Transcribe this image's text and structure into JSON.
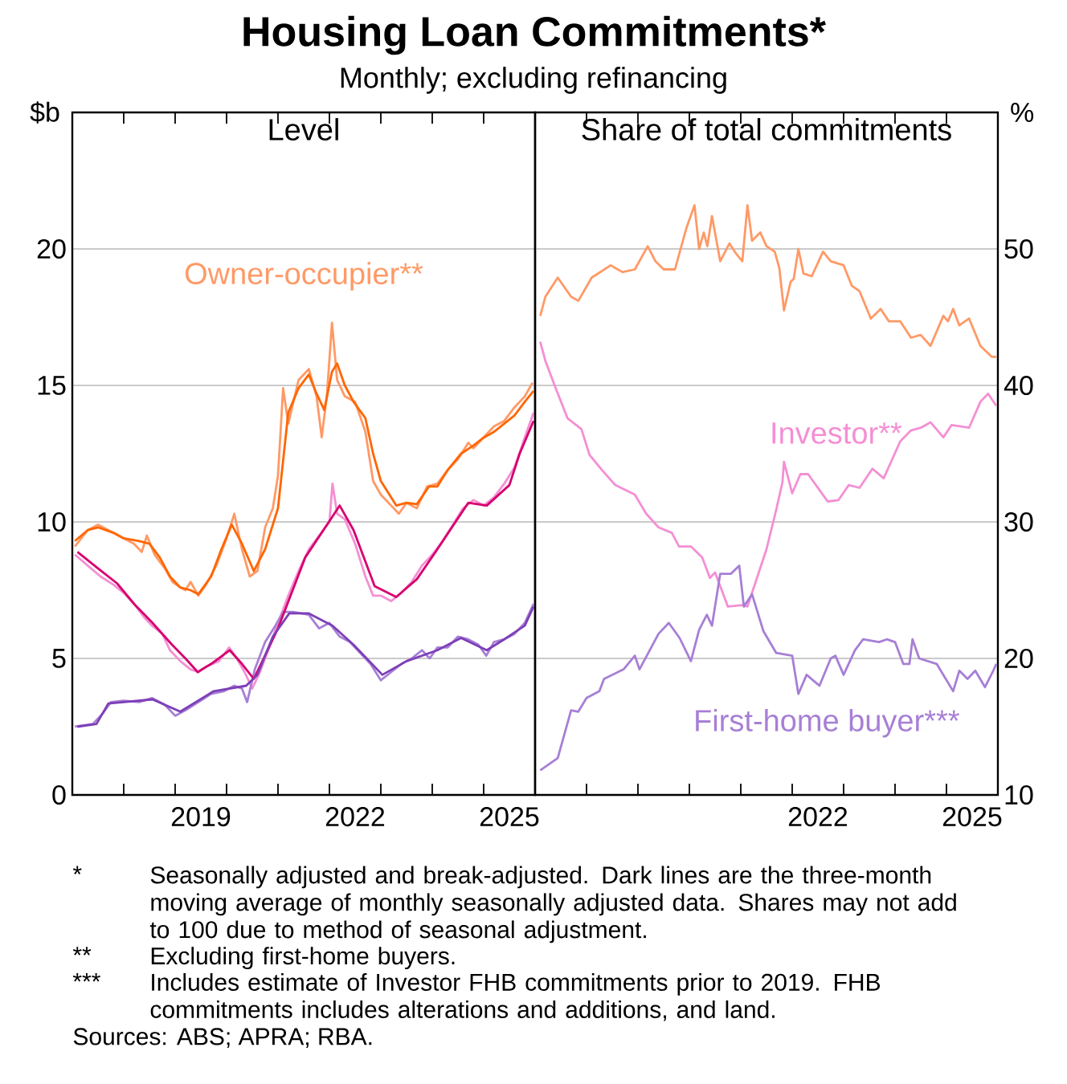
{
  "chart_data": [
    {
      "type": "line",
      "title": "Level",
      "ylabel": "$b",
      "annotations": [
        "Housing Loan Commitments*",
        "Monthly; excluding refinancing",
        "*",
        "Seasonally adjusted and break-adjusted. Dark lines are the three-month moving average of monthly seasonally adjusted data. Shares may not add to 100 due to method of seasonal adjustment.",
        "**",
        "Excluding first-home buyers.",
        "***",
        "Includes estimate of Investor FHB commitments prior to 2019. FHB commitments includes alterations and additions, and land.",
        "Sources: ABS; APRA; RBA."
      ],
      "xlim": [
        2017,
        2026
      ],
      "xticks": [
        {
          "value": 2018,
          "label": null
        },
        {
          "value": 2019,
          "label": null
        },
        {
          "value": 2020,
          "label": null
        },
        {
          "value": 2021,
          "label": null
        },
        {
          "value": 2022,
          "label": null
        },
        {
          "value": 2023,
          "label": null
        },
        {
          "value": 2024,
          "label": null
        },
        {
          "value": 2025,
          "label": null
        },
        {
          "value": 2019.5,
          "label": "2019"
        },
        {
          "value": 2022.5,
          "label": "2022"
        },
        {
          "value": 2025.5,
          "label": "2025"
        }
      ],
      "ylim": [
        0,
        25
      ],
      "yticks": [
        0,
        5,
        10,
        15,
        20
      ],
      "grid": "y",
      "series": [
        {
          "name": "Owner-occupier**",
          "color": "#ff9966",
          "x": [
            2017.05,
            2017.3,
            2017.5,
            2017.8,
            2018.0,
            2018.2,
            2018.35,
            2018.45,
            2018.6,
            2018.8,
            2018.95,
            2019.1,
            2019.2,
            2019.3,
            2019.45,
            2019.6,
            2019.8,
            2020.0,
            2020.15,
            2020.3,
            2020.45,
            2020.6,
            2020.75,
            2020.9,
            2021.0,
            2021.1,
            2021.2,
            2021.4,
            2021.6,
            2021.75,
            2021.85,
            2021.95,
            2022.05,
            2022.15,
            2022.3,
            2022.5,
            2022.7,
            2022.85,
            2023.0,
            2023.2,
            2023.35,
            2023.5,
            2023.7,
            2023.9,
            2024.1,
            2024.3,
            2024.5,
            2024.7,
            2024.8,
            2025.0,
            2025.2,
            2025.4,
            2025.6,
            2025.8,
            2025.95
          ],
          "values": [
            9.1,
            9.7,
            9.9,
            9.6,
            9.4,
            9.2,
            8.9,
            9.5,
            8.8,
            8.3,
            7.8,
            7.6,
            7.5,
            7.8,
            7.3,
            7.7,
            8.4,
            9.4,
            10.3,
            9.0,
            8.0,
            8.2,
            9.8,
            10.5,
            11.7,
            14.9,
            13.6,
            15.2,
            15.6,
            14.6,
            13.1,
            14.6,
            17.3,
            15.2,
            14.6,
            14.4,
            13.3,
            11.5,
            11.0,
            10.6,
            10.3,
            10.7,
            10.5,
            11.3,
            11.4,
            11.9,
            12.3,
            12.9,
            12.7,
            13.1,
            13.5,
            13.7,
            14.2,
            14.6,
            15.1
          ]
        },
        {
          "color": "#f48fd4",
          "x": [
            2017.05,
            2017.3,
            2017.55,
            2017.8,
            2018.0,
            2018.2,
            2018.4,
            2018.55,
            2018.75,
            2018.9,
            2019.1,
            2019.3,
            2019.45,
            2019.6,
            2019.85,
            2020.05,
            2020.2,
            2020.35,
            2020.5,
            2020.65,
            2020.85,
            2021.0,
            2021.2,
            2021.4,
            2021.6,
            2021.8,
            2022.0,
            2022.06,
            2022.15,
            2022.3,
            2022.5,
            2022.7,
            2022.85,
            2023.0,
            2023.2,
            2023.4,
            2023.6,
            2023.8,
            2024.0,
            2024.2,
            2024.4,
            2024.6,
            2024.8,
            2025.0,
            2025.2,
            2025.4,
            2025.6,
            2025.8,
            2025.97
          ],
          "values": [
            8.8,
            8.4,
            8.0,
            7.7,
            7.4,
            7.0,
            6.5,
            6.2,
            5.9,
            5.3,
            4.9,
            4.6,
            4.5,
            4.7,
            4.9,
            5.4,
            5.0,
            4.5,
            3.9,
            4.5,
            5.5,
            6.3,
            7.3,
            8.2,
            9.0,
            9.5,
            10.0,
            11.4,
            10.3,
            10.1,
            9.2,
            8.0,
            7.3,
            7.3,
            7.1,
            7.4,
            7.8,
            8.4,
            8.8,
            9.3,
            9.9,
            10.5,
            10.8,
            10.6,
            10.9,
            11.4,
            12.0,
            13.1,
            14.0
          ]
        },
        {
          "color": "#a77fd6",
          "x": [
            2017.05,
            2017.4,
            2017.6,
            2017.75,
            2018.0,
            2018.3,
            2018.55,
            2018.8,
            2019.0,
            2019.2,
            2019.45,
            2019.7,
            2019.95,
            2020.15,
            2020.3,
            2020.4,
            2020.55,
            2020.75,
            2020.95,
            2021.1,
            2021.3,
            2021.6,
            2021.8,
            2022.0,
            2022.2,
            2022.4,
            2022.6,
            2022.8,
            2023.0,
            2023.2,
            2023.4,
            2023.6,
            2023.8,
            2023.95,
            2024.1,
            2024.3,
            2024.5,
            2024.7,
            2024.9,
            2025.05,
            2025.2,
            2025.4,
            2025.6,
            2025.8,
            2025.97
          ],
          "values": [
            2.5,
            2.6,
            3.0,
            3.4,
            3.45,
            3.4,
            3.55,
            3.3,
            2.9,
            3.1,
            3.4,
            3.7,
            3.8,
            4.0,
            3.9,
            3.4,
            4.6,
            5.6,
            6.2,
            6.7,
            6.7,
            6.6,
            6.1,
            6.3,
            5.8,
            5.6,
            5.2,
            4.8,
            4.2,
            4.5,
            4.8,
            5.0,
            5.3,
            5.0,
            5.4,
            5.4,
            5.8,
            5.7,
            5.5,
            5.1,
            5.6,
            5.7,
            5.9,
            6.3,
            7.0
          ]
        },
        {
          "color": "#ff6600",
          "x": [
            2017.05,
            2017.3,
            2017.5,
            2017.8,
            2018.0,
            2018.3,
            2018.5,
            2018.7,
            2018.9,
            2019.1,
            2019.3,
            2019.45,
            2019.7,
            2019.9,
            2020.1,
            2020.3,
            2020.53,
            2020.75,
            2021.0,
            2021.2,
            2021.4,
            2021.6,
            2021.75,
            2021.9,
            2022.05,
            2022.15,
            2022.3,
            2022.47,
            2022.7,
            2022.85,
            2023.0,
            2023.3,
            2023.5,
            2023.7,
            2023.94,
            2024.1,
            2024.3,
            2024.56,
            2024.8,
            2024.97,
            2025.2,
            2025.4,
            2025.6,
            2025.8,
            2025.97
          ],
          "values": [
            9.3,
            9.7,
            9.8,
            9.6,
            9.4,
            9.3,
            9.2,
            8.7,
            8.0,
            7.6,
            7.5,
            7.35,
            8.0,
            9.0,
            9.9,
            9.2,
            8.2,
            9.0,
            10.5,
            14.0,
            14.9,
            15.4,
            14.7,
            14.1,
            15.5,
            15.8,
            15.0,
            14.4,
            13.8,
            12.5,
            11.5,
            10.6,
            10.7,
            10.65,
            11.3,
            11.3,
            11.9,
            12.5,
            12.8,
            13.05,
            13.3,
            13.6,
            13.9,
            14.4,
            14.8
          ]
        },
        {
          "color": "#d6006e",
          "x": [
            2017.1,
            2017.5,
            2017.87,
            2018.2,
            2018.56,
            2018.94,
            2019.2,
            2019.44,
            2019.7,
            2020.06,
            2020.3,
            2020.53,
            2021.0,
            2021.53,
            2022.06,
            2022.2,
            2022.47,
            2022.88,
            2023.3,
            2023.7,
            2024.1,
            2024.7,
            2025.06,
            2025.5,
            2025.7,
            2025.97
          ],
          "values": [
            8.9,
            8.3,
            7.75,
            7.0,
            6.3,
            5.5,
            5.0,
            4.5,
            4.8,
            5.3,
            4.8,
            4.25,
            6.1,
            8.7,
            10.2,
            10.6,
            9.7,
            7.65,
            7.25,
            7.9,
            9.0,
            10.7,
            10.6,
            11.35,
            12.5,
            13.7
          ]
        },
        {
          "color": "#7d3fb8",
          "x": [
            2017.1,
            2017.47,
            2017.7,
            2018.0,
            2018.56,
            2019.1,
            2019.75,
            2020.38,
            2020.6,
            2020.9,
            2021.22,
            2021.6,
            2022.06,
            2022.47,
            2023.03,
            2023.5,
            2024.1,
            2024.56,
            2025.06,
            2025.4,
            2025.8,
            2025.97
          ],
          "values": [
            2.5,
            2.6,
            3.35,
            3.4,
            3.5,
            3.05,
            3.8,
            4.0,
            4.4,
            5.8,
            6.65,
            6.65,
            6.2,
            5.5,
            4.4,
            4.9,
            5.3,
            5.75,
            5.3,
            5.7,
            6.2,
            6.9
          ]
        }
      ]
    },
    {
      "type": "line",
      "title": "Share of total commitments",
      "ylabel": "%",
      "xlim": [
        2017,
        2026
      ],
      "xticks": [
        {
          "value": 2018,
          "label": null
        },
        {
          "value": 2019,
          "label": null
        },
        {
          "value": 2020,
          "label": null
        },
        {
          "value": 2021,
          "label": null
        },
        {
          "value": 2022,
          "label": null
        },
        {
          "value": 2023,
          "label": null
        },
        {
          "value": 2024,
          "label": null
        },
        {
          "value": 2025,
          "label": null
        },
        {
          "value": 2022.5,
          "label": "2022"
        },
        {
          "value": 2025.5,
          "label": "2025"
        }
      ],
      "ylim": [
        10,
        60
      ],
      "yticks": [
        10,
        20,
        30,
        40,
        50
      ],
      "grid": "y",
      "series": [
        {
          "color": "#ff9966",
          "x": [
            2017.1,
            2017.2,
            2017.44,
            2017.7,
            2017.84,
            2018.1,
            2018.47,
            2018.7,
            2018.94,
            2019.19,
            2019.34,
            2019.5,
            2019.72,
            2019.94,
            2020.1,
            2020.19,
            2020.28,
            2020.35,
            2020.44,
            2020.6,
            2020.78,
            2020.9,
            2021.03,
            2021.13,
            2021.22,
            2021.38,
            2021.5,
            2021.66,
            2021.75,
            2021.84,
            2021.97,
            2022.03,
            2022.12,
            2022.22,
            2022.38,
            2022.6,
            2022.75,
            2023.0,
            2023.16,
            2023.31,
            2023.53,
            2023.72,
            2023.88,
            2024.1,
            2024.31,
            2024.5,
            2024.69,
            2024.94,
            2025.03,
            2025.13,
            2025.25,
            2025.44,
            2025.66,
            2025.88,
            2025.97
          ],
          "values": [
            45.1,
            46.5,
            47.9,
            46.5,
            46.2,
            47.9,
            48.8,
            48.3,
            48.5,
            50.2,
            49.1,
            48.5,
            48.5,
            51.5,
            53.2,
            50.0,
            51.2,
            50.2,
            52.4,
            49.1,
            50.4,
            49.7,
            49.1,
            53.2,
            50.6,
            51.2,
            50.2,
            49.8,
            48.6,
            45.5,
            47.6,
            47.8,
            50.0,
            48.2,
            48.0,
            49.8,
            49.1,
            48.8,
            47.3,
            46.9,
            44.9,
            45.6,
            44.7,
            44.7,
            43.5,
            43.7,
            42.9,
            45.1,
            44.7,
            45.6,
            44.4,
            44.9,
            42.9,
            42.1,
            42.1
          ]
        },
        {
          "name": "Investor**",
          "color": "#f48fd4",
          "x": [
            2017.1,
            2017.2,
            2017.38,
            2017.63,
            2017.9,
            2018.06,
            2018.3,
            2018.56,
            2018.94,
            2019.16,
            2019.4,
            2019.66,
            2019.8,
            2020.03,
            2020.25,
            2020.4,
            2020.5,
            2020.75,
            2021.03,
            2021.13,
            2021.28,
            2021.5,
            2021.69,
            2021.81,
            2021.84,
            2022.0,
            2022.16,
            2022.31,
            2022.69,
            2022.9,
            2023.1,
            2023.31,
            2023.56,
            2023.78,
            2024.1,
            2024.31,
            2024.5,
            2024.69,
            2024.94,
            2025.1,
            2025.44,
            2025.66,
            2025.81,
            2025.97
          ],
          "values": [
            43.2,
            41.8,
            40.0,
            37.6,
            36.8,
            34.9,
            33.8,
            32.7,
            32.0,
            30.6,
            29.6,
            29.2,
            28.2,
            28.2,
            27.4,
            25.9,
            26.3,
            23.8,
            23.9,
            23.8,
            25.5,
            28.0,
            30.9,
            32.9,
            34.4,
            32.1,
            33.5,
            33.5,
            31.5,
            31.6,
            32.7,
            32.5,
            33.9,
            33.2,
            35.9,
            36.7,
            36.9,
            37.3,
            36.2,
            37.1,
            36.9,
            38.8,
            39.4,
            38.5
          ]
        },
        {
          "name": "First-home buyer***",
          "color": "#a77fd6",
          "x": [
            2017.1,
            2017.44,
            2017.7,
            2017.84,
            2018.0,
            2018.25,
            2018.34,
            2018.72,
            2018.94,
            2019.03,
            2019.4,
            2019.6,
            2019.81,
            2020.03,
            2020.19,
            2020.34,
            2020.44,
            2020.6,
            2020.81,
            2020.97,
            2021.06,
            2021.22,
            2021.44,
            2021.69,
            2022.0,
            2022.12,
            2022.28,
            2022.53,
            2022.75,
            2022.84,
            2023.0,
            2023.22,
            2023.38,
            2023.69,
            2023.84,
            2024.0,
            2024.16,
            2024.28,
            2024.34,
            2024.47,
            2024.81,
            2025.13,
            2025.25,
            2025.41,
            2025.56,
            2025.75,
            2025.91,
            2025.97
          ],
          "values": [
            11.8,
            12.7,
            16.2,
            16.1,
            17.1,
            17.6,
            18.5,
            19.2,
            20.2,
            19.2,
            21.8,
            22.6,
            21.5,
            19.8,
            22.1,
            23.2,
            22.4,
            26.2,
            26.2,
            26.8,
            23.8,
            24.7,
            22.0,
            20.4,
            20.2,
            17.4,
            18.8,
            18.0,
            20.0,
            20.2,
            18.8,
            20.6,
            21.4,
            21.2,
            21.4,
            21.2,
            19.6,
            19.6,
            21.4,
            20.0,
            19.6,
            17.6,
            19.1,
            18.5,
            19.1,
            17.9,
            19.1,
            19.6
          ]
        }
      ]
    }
  ]
}
